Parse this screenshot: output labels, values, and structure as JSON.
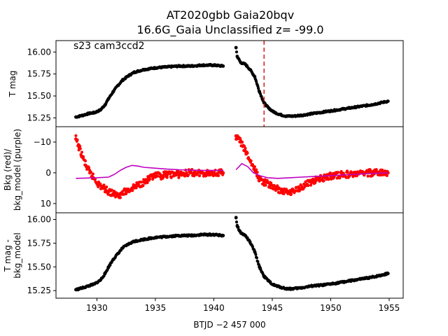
{
  "chart_data": {
    "type": "scatter",
    "title": [
      "AT2020gbb  Gaia20bqv",
      "16.6G_Gaia Unclassified z= -99.0"
    ],
    "annotation": "s23 cam3ccd2",
    "xlabel": "BTJD −2 457 000",
    "xlim": [
      1926.5,
      1956.2
    ],
    "xticks": [
      1930,
      1935,
      1940,
      1945,
      1950,
      1955
    ],
    "vline": {
      "x": 1944.3,
      "color": "#d62728",
      "style": "dashed"
    },
    "panels": [
      {
        "ylabel": [
          "T mag"
        ],
        "ylim": [
          16.13,
          15.15
        ],
        "yticks": [
          15.25,
          15.5,
          15.75,
          16.0
        ],
        "ytick_labels": [
          "15.25",
          "15.50",
          "15.75",
          "16.00"
        ],
        "series": [
          {
            "color": "#000000",
            "marker": "point",
            "x": [
              1928.2,
              1928.8,
              1929.3,
              1929.8,
              1930.3,
              1930.7,
              1931.0,
              1931.4,
              1931.8,
              1932.2,
              1932.7,
              1933.2,
              1934.0,
              1935.0,
              1936.0,
              1937.0,
              1938.0,
              1939.0,
              1940.0,
              1940.8,
              1941.9,
              1942.0,
              1942.3,
              1942.7,
              1943.1,
              1943.5,
              1943.9,
              1944.3,
              1944.7,
              1945.1,
              1945.6,
              1946.2,
              1946.8,
              1947.5,
              1948.5,
              1949.5,
              1950.5,
              1951.5,
              1952.5,
              1953.5,
              1954.2,
              1954.9
            ],
            "y": [
              15.26,
              15.28,
              15.3,
              15.31,
              15.34,
              15.4,
              15.47,
              15.55,
              15.62,
              15.68,
              15.73,
              15.77,
              15.8,
              15.82,
              15.83,
              15.84,
              15.84,
              15.85,
              15.85,
              15.84,
              16.05,
              15.95,
              15.88,
              15.86,
              15.8,
              15.72,
              15.55,
              15.42,
              15.36,
              15.32,
              15.29,
              15.27,
              15.27,
              15.28,
              15.3,
              15.32,
              15.34,
              15.36,
              15.38,
              15.4,
              15.42,
              15.44
            ]
          }
        ]
      },
      {
        "ylabel": [
          "Bkg (red)/",
          "bkg_model (purple)"
        ],
        "ylim": [
          -15,
          13
        ],
        "yticks": [
          -10,
          0,
          10
        ],
        "ytick_labels": [
          "−10",
          "0",
          "10"
        ],
        "series": [
          {
            "color": "#ff0000",
            "marker": "point",
            "x": [
              1928.2,
              1928.5,
              1928.8,
              1929.1,
              1929.4,
              1929.8,
              1930.2,
              1930.6,
              1931.0,
              1931.5,
              1932.0,
              1932.5,
              1933.0,
              1933.5,
              1934.0,
              1934.5,
              1935.0,
              1935.5,
              1936.0,
              1937.0,
              1938.0,
              1939.0,
              1940.0,
              1940.8,
              1941.9,
              1942.3,
              1942.7,
              1943.1,
              1943.5,
              1943.9,
              1944.3,
              1944.8,
              1945.3,
              1945.8,
              1946.3,
              1946.8,
              1947.3,
              1947.8,
              1948.3,
              1949.0,
              1950.0,
              1951.0,
              1952.0,
              1953.0,
              1954.0,
              1954.9
            ],
            "y": [
              -11,
              -8,
              -5,
              -2,
              0,
              2,
              4,
              5,
              6,
              7,
              7,
              6,
              5,
              4,
              3,
              2,
              1,
              1,
              0.5,
              0.5,
              0,
              0,
              0,
              0,
              -12,
              -10,
              -7,
              -4,
              -1,
              2,
              3,
              4,
              5,
              6,
              6,
              6,
              5,
              4,
              3,
              2,
              1,
              0.5,
              0.5,
              0,
              0,
              0
            ]
          },
          {
            "color": "#bf00bf",
            "marker": "line",
            "x": [
              1928.2,
              1929.0,
              1930.0,
              1931.0,
              1931.5,
              1932.0,
              1932.5,
              1933.0,
              1933.5,
              1934.0,
              1935.0,
              1936.0,
              1937.0,
              1938.0,
              1939.0,
              1940.0,
              1940.8,
              1941.9,
              1942.4,
              1942.9,
              1943.4,
              1944.0,
              1944.6,
              1945.5,
              1946.5,
              1947.5,
              1948.5,
              1949.5,
              1950.5,
              1951.5,
              1952.5,
              1953.5,
              1954.9
            ],
            "y": [
              1.8,
              1.7,
              1.6,
              1.4,
              0.5,
              -0.8,
              -1.8,
              -2.4,
              -2.2,
              -1.8,
              -1.5,
              -1.2,
              -1.0,
              -0.9,
              -0.8,
              -0.8,
              -0.8,
              -1.0,
              -3.0,
              -2.0,
              0.0,
              1.0,
              1.6,
              1.8,
              1.6,
              1.4,
              1.2,
              1.0,
              0.8,
              0.6,
              0.4,
              0.2,
              0.0
            ]
          }
        ]
      },
      {
        "ylabel": [
          "T mag -",
          "bkg_model"
        ],
        "ylim": [
          16.07,
          15.17
        ],
        "yticks": [
          15.25,
          15.5,
          15.75,
          16.0
        ],
        "ytick_labels": [
          "15.25",
          "15.50",
          "15.75",
          "16.00"
        ],
        "series": [
          {
            "color": "#000000",
            "marker": "point",
            "x": [
              1928.2,
              1928.8,
              1929.3,
              1929.8,
              1930.3,
              1930.7,
              1931.0,
              1931.4,
              1931.8,
              1932.2,
              1932.7,
              1933.2,
              1934.0,
              1935.0,
              1936.0,
              1937.0,
              1938.0,
              1939.0,
              1940.0,
              1940.8,
              1941.9,
              1942.0,
              1942.3,
              1942.7,
              1943.1,
              1943.5,
              1943.9,
              1944.3,
              1944.7,
              1945.1,
              1945.6,
              1946.2,
              1946.8,
              1947.5,
              1948.5,
              1949.5,
              1950.5,
              1951.5,
              1952.5,
              1953.5,
              1954.2,
              1954.9
            ],
            "y": [
              15.26,
              15.28,
              15.3,
              15.32,
              15.36,
              15.43,
              15.5,
              15.58,
              15.64,
              15.7,
              15.74,
              15.77,
              15.79,
              15.81,
              15.82,
              15.83,
              15.83,
              15.84,
              15.84,
              15.83,
              16.02,
              15.93,
              15.86,
              15.83,
              15.76,
              15.66,
              15.5,
              15.4,
              15.35,
              15.31,
              15.29,
              15.27,
              15.27,
              15.28,
              15.3,
              15.31,
              15.33,
              15.35,
              15.37,
              15.39,
              15.41,
              15.43
            ]
          }
        ]
      }
    ]
  }
}
